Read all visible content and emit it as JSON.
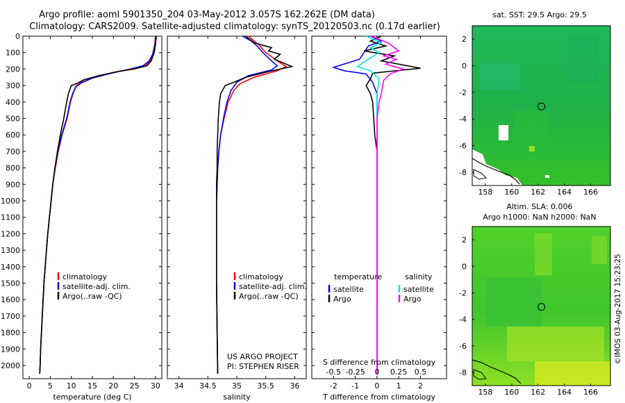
{
  "header": {
    "title_line1": "Argo profile: aoml 5901350_204 03-May-2012 3.057S 162.262E (DM data)",
    "title_line2": "Climatology: CARS2009. Satellite-adjusted climatology: synTS_20120503.nc (0.17d earlier)"
  },
  "side_text": "©IMOS 03-Aug-2017 15:23:25",
  "colors": {
    "climatology": "#ff0000",
    "satellite": "#0000ff",
    "argo": "#000000",
    "sal_satellite": "#00e5ee",
    "sal_argo": "#ff00ff"
  },
  "chart_data": [
    {
      "id": "temperature",
      "type": "line",
      "xlabel": "temperature (deg C)",
      "xticks": [
        0,
        5,
        10,
        15,
        20,
        25,
        30
      ],
      "xlim": [
        -1.5,
        31.5
      ],
      "ylim": [
        0,
        2080
      ],
      "yticks": [
        0,
        100,
        200,
        300,
        400,
        500,
        600,
        700,
        800,
        900,
        1000,
        1100,
        1200,
        1300,
        1400,
        1500,
        1600,
        1700,
        1800,
        1900,
        2000
      ],
      "legend": [
        "climatology",
        "satellite-adj. clim.",
        "Argo(..raw -QC)"
      ],
      "series": [
        {
          "name": "climatology",
          "color": "#ff0000",
          "points": [
            [
              30.0,
              0
            ],
            [
              29.8,
              50
            ],
            [
              29.4,
              100
            ],
            [
              28.8,
              150
            ],
            [
              27.5,
              180
            ],
            [
              25.0,
              200
            ],
            [
              20.0,
              220
            ],
            [
              15.5,
              250
            ],
            [
              12.5,
              280
            ],
            [
              11.2,
              300
            ],
            [
              10.4,
              350
            ],
            [
              9.8,
              400
            ],
            [
              9.0,
              500
            ],
            [
              7.8,
              600
            ],
            [
              6.9,
              700
            ],
            [
              6.2,
              800
            ],
            [
              5.6,
              900
            ],
            [
              5.2,
              1000
            ],
            [
              4.8,
              1100
            ],
            [
              4.4,
              1200
            ],
            [
              4.1,
              1300
            ],
            [
              3.8,
              1400
            ],
            [
              3.5,
              1500
            ],
            [
              3.3,
              1600
            ],
            [
              3.1,
              1700
            ],
            [
              2.9,
              1800
            ],
            [
              2.7,
              1900
            ],
            [
              2.6,
              2000
            ],
            [
              2.5,
              2050
            ]
          ]
        },
        {
          "name": "satellite-adj. clim.",
          "color": "#0000ff",
          "points": [
            [
              30.1,
              0
            ],
            [
              29.9,
              50
            ],
            [
              29.5,
              100
            ],
            [
              28.5,
              150
            ],
            [
              27.0,
              180
            ],
            [
              24.0,
              200
            ],
            [
              19.5,
              225
            ],
            [
              15.0,
              255
            ],
            [
              12.3,
              285
            ],
            [
              11.0,
              310
            ],
            [
              10.3,
              350
            ],
            [
              9.7,
              400
            ],
            [
              8.9,
              500
            ],
            [
              7.7,
              600
            ],
            [
              6.8,
              700
            ],
            [
              6.1,
              800
            ],
            [
              5.6,
              900
            ],
            [
              5.2,
              1000
            ],
            [
              4.8,
              1100
            ],
            [
              4.4,
              1200
            ],
            [
              4.1,
              1300
            ],
            [
              3.8,
              1400
            ],
            [
              3.5,
              1500
            ],
            [
              3.3,
              1600
            ],
            [
              3.1,
              1700
            ],
            [
              2.9,
              1800
            ],
            [
              2.7,
              1900
            ],
            [
              2.6,
              2000
            ],
            [
              2.5,
              2050
            ]
          ]
        },
        {
          "name": "Argo(..raw -QC)",
          "color": "#000000",
          "points": [
            [
              30.2,
              0
            ],
            [
              30.0,
              50
            ],
            [
              29.7,
              100
            ],
            [
              29.0,
              150
            ],
            [
              28.0,
              180
            ],
            [
              25.5,
              195
            ],
            [
              21.0,
              215
            ],
            [
              16.5,
              240
            ],
            [
              13.0,
              265
            ],
            [
              11.5,
              285
            ],
            [
              10.0,
              300
            ],
            [
              9.3,
              350
            ],
            [
              8.9,
              400
            ],
            [
              8.2,
              500
            ],
            [
              7.4,
              600
            ],
            [
              6.7,
              700
            ],
            [
              6.1,
              800
            ],
            [
              5.6,
              900
            ],
            [
              5.2,
              1000
            ],
            [
              4.8,
              1100
            ],
            [
              4.4,
              1200
            ],
            [
              4.1,
              1300
            ],
            [
              3.8,
              1400
            ],
            [
              3.5,
              1500
            ],
            [
              3.3,
              1600
            ],
            [
              3.1,
              1700
            ],
            [
              2.9,
              1800
            ],
            [
              2.7,
              1900
            ],
            [
              2.6,
              2000
            ],
            [
              2.5,
              2050
            ]
          ]
        }
      ]
    },
    {
      "id": "salinity",
      "type": "line",
      "xlabel": "salinity",
      "xticks": [
        34,
        34.5,
        35,
        35.5,
        36
      ],
      "xlim": [
        33.8,
        36.2
      ],
      "ylim": [
        0,
        2080
      ],
      "legend": [
        "climatology",
        "satellite-adj. clim.",
        "Argo(..raw -QC)"
      ],
      "annotation": [
        "US ARGO PROJECT",
        "PI: STEPHEN RISER"
      ],
      "series": [
        {
          "name": "climatology",
          "color": "#ff0000",
          "points": [
            [
              35.2,
              0
            ],
            [
              35.3,
              30
            ],
            [
              35.4,
              60
            ],
            [
              35.5,
              100
            ],
            [
              35.7,
              150
            ],
            [
              35.85,
              185
            ],
            [
              35.7,
              210
            ],
            [
              35.3,
              250
            ],
            [
              35.05,
              290
            ],
            [
              34.95,
              330
            ],
            [
              34.85,
              400
            ],
            [
              34.78,
              500
            ],
            [
              34.72,
              600
            ],
            [
              34.69,
              700
            ],
            [
              34.67,
              800
            ],
            [
              34.66,
              900
            ],
            [
              34.65,
              1000
            ],
            [
              34.65,
              1200
            ],
            [
              34.65,
              1500
            ],
            [
              34.66,
              1800
            ],
            [
              34.67,
              2050
            ]
          ]
        },
        {
          "name": "satellite-adj. clim.",
          "color": "#0000ff",
          "points": [
            [
              35.1,
              0
            ],
            [
              35.25,
              30
            ],
            [
              35.35,
              60
            ],
            [
              35.45,
              100
            ],
            [
              35.6,
              150
            ],
            [
              35.7,
              180
            ],
            [
              35.6,
              205
            ],
            [
              35.2,
              240
            ],
            [
              35.0,
              280
            ],
            [
              34.9,
              330
            ],
            [
              34.83,
              400
            ],
            [
              34.77,
              500
            ],
            [
              34.72,
              600
            ],
            [
              34.69,
              700
            ],
            [
              34.67,
              800
            ],
            [
              34.66,
              900
            ],
            [
              34.65,
              1000
            ],
            [
              34.65,
              1200
            ],
            [
              34.65,
              1500
            ],
            [
              34.66,
              1800
            ],
            [
              34.67,
              2050
            ]
          ]
        },
        {
          "name": "Argo(..raw -QC)",
          "color": "#000000",
          "points": [
            [
              35.15,
              0
            ],
            [
              35.3,
              40
            ],
            [
              35.6,
              70
            ],
            [
              35.55,
              90
            ],
            [
              35.75,
              110
            ],
            [
              35.65,
              140
            ],
            [
              35.95,
              185
            ],
            [
              35.55,
              215
            ],
            [
              35.15,
              250
            ],
            [
              34.95,
              280
            ],
            [
              34.8,
              300
            ],
            [
              34.72,
              350
            ],
            [
              34.7,
              400
            ],
            [
              34.68,
              500
            ],
            [
              34.67,
              600
            ],
            [
              34.66,
              700
            ],
            [
              34.66,
              800
            ],
            [
              34.65,
              900
            ],
            [
              34.65,
              1000
            ],
            [
              34.65,
              1200
            ],
            [
              34.65,
              1500
            ],
            [
              34.66,
              1800
            ],
            [
              34.67,
              2050
            ]
          ]
        }
      ]
    },
    {
      "id": "difference",
      "type": "line",
      "xlabel": "T difference from climatology",
      "xlabel_top": "S difference from climatology",
      "xticks": [
        -2,
        -1,
        0,
        1,
        2
      ],
      "xticks_top": [
        "-0.5",
        "-0.25",
        "0",
        "0.25",
        "0.5"
      ],
      "xticks_top_pos": [
        -2,
        -1,
        0,
        1,
        2
      ],
      "xlim": [
        -3,
        3.2
      ],
      "ylim": [
        0,
        2080
      ],
      "legend_headers": [
        "temperature",
        "salinity"
      ],
      "legend": [
        "satellite",
        "Argo",
        "satellite",
        "Argo"
      ],
      "series": [
        {
          "name": "satellite",
          "group": "temperature",
          "color": "#0000ff",
          "points": [
            [
              -0.3,
              0
            ],
            [
              0.2,
              30
            ],
            [
              -0.4,
              60
            ],
            [
              -0.6,
              100
            ],
            [
              -0.8,
              140
            ],
            [
              -2.0,
              190
            ],
            [
              -1.5,
              210
            ],
            [
              -0.5,
              230
            ],
            [
              -0.2,
              280
            ],
            [
              0,
              350
            ],
            [
              0,
              500
            ],
            [
              0,
              2050
            ]
          ]
        },
        {
          "name": "Argo",
          "group": "temperature",
          "color": "#000000",
          "points": [
            [
              0.2,
              0
            ],
            [
              -0.3,
              30
            ],
            [
              0.4,
              60
            ],
            [
              -0.6,
              90
            ],
            [
              0.8,
              120
            ],
            [
              0.2,
              150
            ],
            [
              2.0,
              195
            ],
            [
              0.5,
              215
            ],
            [
              -0.2,
              225
            ],
            [
              -0.3,
              260
            ],
            [
              -0.5,
              300
            ],
            [
              -0.3,
              350
            ],
            [
              -0.2,
              400
            ],
            [
              -0.1,
              600
            ],
            [
              0,
              700
            ],
            [
              0,
              800
            ],
            [
              0,
              2050
            ]
          ]
        },
        {
          "name": "satellite",
          "group": "salinity",
          "color": "#00e5ee",
          "points": [
            [
              -0.5,
              0
            ],
            [
              0.2,
              40
            ],
            [
              -0.3,
              70
            ],
            [
              0.1,
              100
            ],
            [
              -0.4,
              140
            ],
            [
              -0.9,
              185
            ],
            [
              -0.3,
              210
            ],
            [
              0.1,
              260
            ],
            [
              0,
              350
            ],
            [
              0,
              2050
            ]
          ]
        },
        {
          "name": "Argo",
          "group": "salinity",
          "color": "#ff00ff",
          "points": [
            [
              -0.3,
              0
            ],
            [
              0.5,
              40
            ],
            [
              1.0,
              90
            ],
            [
              0.3,
              120
            ],
            [
              0.9,
              140
            ],
            [
              0.4,
              170
            ],
            [
              1.2,
              200
            ],
            [
              0.6,
              230
            ],
            [
              0.3,
              270
            ],
            [
              0.2,
              350
            ],
            [
              0.1,
              400
            ],
            [
              0,
              500
            ],
            [
              0,
              2050
            ]
          ]
        }
      ]
    },
    {
      "id": "sst_map",
      "type": "heatmap",
      "title": "sat. SST: 29.5 Argo: 29.5",
      "xticks": [
        158,
        160,
        162,
        164,
        166
      ],
      "yticks": [
        2,
        0,
        -2,
        -4,
        -6,
        -8
      ],
      "xlim": [
        157,
        167.5
      ],
      "ylim": [
        -9,
        3
      ],
      "float_position": [
        162.26,
        -3.06
      ]
    },
    {
      "id": "sla_map",
      "type": "heatmap",
      "title_line1": "Altim. SLA: 0.006",
      "title_line2": "Argo h1000: NaN h2000: NaN",
      "xticks": [
        158,
        160,
        162,
        164,
        166
      ],
      "yticks": [
        2,
        0,
        -2,
        -4,
        -6,
        -8
      ],
      "xlim": [
        157,
        167.5
      ],
      "ylim": [
        -9,
        3
      ],
      "float_position": [
        162.26,
        -3.06
      ]
    }
  ]
}
